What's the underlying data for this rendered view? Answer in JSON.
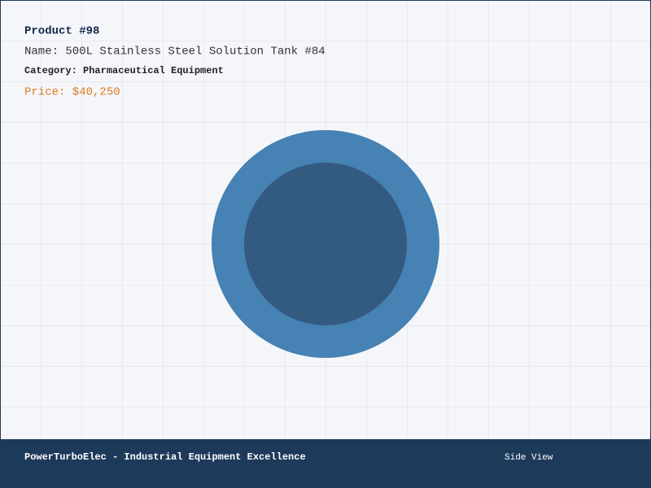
{
  "header": {
    "title": "Product #98",
    "name": "Name: 500L Stainless Steel Solution Tank #84",
    "category": "Category: Pharmaceutical Equipment",
    "price": "Price: $40,250"
  },
  "footer": {
    "brand": "PowerTurboElec - Industrial Equipment Excellence",
    "view": "Side View"
  }
}
